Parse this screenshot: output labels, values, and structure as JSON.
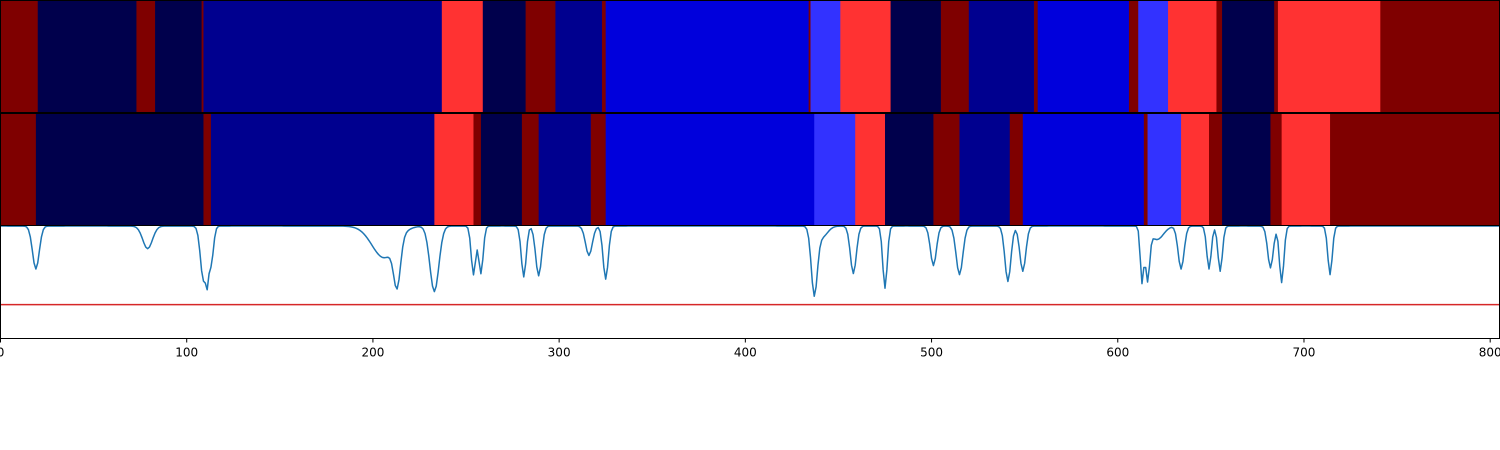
{
  "chart_data": [
    {
      "type": "heatmap",
      "name": "segmentation-track-1",
      "xlim": [
        0,
        805
      ],
      "segments": [
        {
          "start": 0,
          "end": 20,
          "color": "#7f0000"
        },
        {
          "start": 20,
          "end": 73,
          "color": "#00004c"
        },
        {
          "start": 73,
          "end": 83,
          "color": "#7f0000"
        },
        {
          "start": 83,
          "end": 108,
          "color": "#00004c"
        },
        {
          "start": 108,
          "end": 109,
          "color": "#7f0000"
        },
        {
          "start": 109,
          "end": 237,
          "color": "#00008f"
        },
        {
          "start": 237,
          "end": 259,
          "color": "#ff3232"
        },
        {
          "start": 259,
          "end": 282,
          "color": "#00004c"
        },
        {
          "start": 282,
          "end": 298,
          "color": "#7f0000"
        },
        {
          "start": 298,
          "end": 323,
          "color": "#00008f"
        },
        {
          "start": 323,
          "end": 325,
          "color": "#7f0000"
        },
        {
          "start": 325,
          "end": 434,
          "color": "#0000dc"
        },
        {
          "start": 434,
          "end": 435,
          "color": "#7f0000"
        },
        {
          "start": 435,
          "end": 451,
          "color": "#3232ff"
        },
        {
          "start": 451,
          "end": 478,
          "color": "#ff3232"
        },
        {
          "start": 478,
          "end": 505,
          "color": "#00004c"
        },
        {
          "start": 505,
          "end": 520,
          "color": "#7f0000"
        },
        {
          "start": 520,
          "end": 555,
          "color": "#00008f"
        },
        {
          "start": 555,
          "end": 557,
          "color": "#7f0000"
        },
        {
          "start": 557,
          "end": 606,
          "color": "#0000dc"
        },
        {
          "start": 606,
          "end": 611,
          "color": "#7f0000"
        },
        {
          "start": 611,
          "end": 627,
          "color": "#3232ff"
        },
        {
          "start": 627,
          "end": 653,
          "color": "#ff3232"
        },
        {
          "start": 653,
          "end": 656,
          "color": "#7f0000"
        },
        {
          "start": 656,
          "end": 684,
          "color": "#00004c"
        },
        {
          "start": 684,
          "end": 686,
          "color": "#7f0000"
        },
        {
          "start": 686,
          "end": 741,
          "color": "#ff3232"
        },
        {
          "start": 741,
          "end": 805,
          "color": "#7f0000"
        }
      ]
    },
    {
      "type": "heatmap",
      "name": "segmentation-track-2",
      "xlim": [
        0,
        805
      ],
      "segments": [
        {
          "start": 0,
          "end": 19,
          "color": "#7f0000"
        },
        {
          "start": 19,
          "end": 109,
          "color": "#00004c"
        },
        {
          "start": 109,
          "end": 113,
          "color": "#7f0000"
        },
        {
          "start": 113,
          "end": 233,
          "color": "#00008f"
        },
        {
          "start": 233,
          "end": 254,
          "color": "#ff3232"
        },
        {
          "start": 254,
          "end": 258,
          "color": "#7f0000"
        },
        {
          "start": 258,
          "end": 280,
          "color": "#00004c"
        },
        {
          "start": 280,
          "end": 289,
          "color": "#7f0000"
        },
        {
          "start": 289,
          "end": 317,
          "color": "#00008f"
        },
        {
          "start": 317,
          "end": 325,
          "color": "#7f0000"
        },
        {
          "start": 325,
          "end": 437,
          "color": "#0000dc"
        },
        {
          "start": 437,
          "end": 459,
          "color": "#3232ff"
        },
        {
          "start": 459,
          "end": 475,
          "color": "#ff3232"
        },
        {
          "start": 475,
          "end": 501,
          "color": "#00004c"
        },
        {
          "start": 501,
          "end": 515,
          "color": "#7f0000"
        },
        {
          "start": 515,
          "end": 542,
          "color": "#00008f"
        },
        {
          "start": 542,
          "end": 549,
          "color": "#7f0000"
        },
        {
          "start": 549,
          "end": 614,
          "color": "#0000dc"
        },
        {
          "start": 614,
          "end": 616,
          "color": "#7f0000"
        },
        {
          "start": 616,
          "end": 634,
          "color": "#3232ff"
        },
        {
          "start": 634,
          "end": 649,
          "color": "#ff3232"
        },
        {
          "start": 649,
          "end": 656,
          "color": "#7f0000"
        },
        {
          "start": 656,
          "end": 682,
          "color": "#00004c"
        },
        {
          "start": 682,
          "end": 688,
          "color": "#7f0000"
        },
        {
          "start": 688,
          "end": 714,
          "color": "#ff3232"
        },
        {
          "start": 714,
          "end": 805,
          "color": "#7f0000"
        }
      ]
    },
    {
      "type": "line",
      "name": "boundary-signal",
      "xlim": [
        0,
        805
      ],
      "ylim": [
        0,
        1
      ],
      "x_ticks": [
        0,
        100,
        200,
        300,
        400,
        500,
        600,
        700,
        800
      ],
      "tick_labels": [
        "0",
        "100",
        "200",
        "300",
        "400",
        "500",
        "600",
        "700",
        "800"
      ],
      "threshold": 0.3,
      "threshold_color": "#d62728",
      "line_color": "#1f77b4",
      "baseline": 0.995,
      "dips": [
        {
          "x": 19,
          "depth": 0.38,
          "width": 1.8
        },
        {
          "x": 79,
          "depth": 0.2,
          "width": 2.6
        },
        {
          "x": 109,
          "depth": 0.48,
          "width": 1.6
        },
        {
          "x": 111,
          "depth": 0.24,
          "width": 0.7
        },
        {
          "x": 113,
          "depth": 0.34,
          "width": 1.3
        },
        {
          "x": 206,
          "depth": 0.28,
          "width": 6.5
        },
        {
          "x": 213,
          "depth": 0.4,
          "width": 1.8
        },
        {
          "x": 233,
          "depth": 0.58,
          "width": 2.4
        },
        {
          "x": 254,
          "depth": 0.43,
          "width": 1.2
        },
        {
          "x": 258,
          "depth": 0.42,
          "width": 1.2
        },
        {
          "x": 281,
          "depth": 0.45,
          "width": 1.3
        },
        {
          "x": 289,
          "depth": 0.44,
          "width": 1.6
        },
        {
          "x": 316,
          "depth": 0.26,
          "width": 1.8
        },
        {
          "x": 325,
          "depth": 0.47,
          "width": 1.4
        },
        {
          "x": 437,
          "depth": 0.58,
          "width": 1.6
        },
        {
          "x": 441,
          "depth": 0.1,
          "width": 3.0
        },
        {
          "x": 458,
          "depth": 0.42,
          "width": 1.6
        },
        {
          "x": 475,
          "depth": 0.55,
          "width": 1.2
        },
        {
          "x": 501,
          "depth": 0.35,
          "width": 1.6
        },
        {
          "x": 515,
          "depth": 0.43,
          "width": 1.8
        },
        {
          "x": 541,
          "depth": 0.49,
          "width": 1.6
        },
        {
          "x": 549,
          "depth": 0.4,
          "width": 1.6
        },
        {
          "x": 613,
          "depth": 0.49,
          "width": 0.9
        },
        {
          "x": 616,
          "depth": 0.45,
          "width": 1.1
        },
        {
          "x": 621,
          "depth": 0.12,
          "width": 3.5
        },
        {
          "x": 634,
          "depth": 0.38,
          "width": 1.6
        },
        {
          "x": 649,
          "depth": 0.38,
          "width": 1.2
        },
        {
          "x": 655,
          "depth": 0.4,
          "width": 1.2
        },
        {
          "x": 682,
          "depth": 0.37,
          "width": 1.5
        },
        {
          "x": 688,
          "depth": 0.5,
          "width": 1.2
        },
        {
          "x": 714,
          "depth": 0.43,
          "width": 1.2
        }
      ]
    }
  ]
}
